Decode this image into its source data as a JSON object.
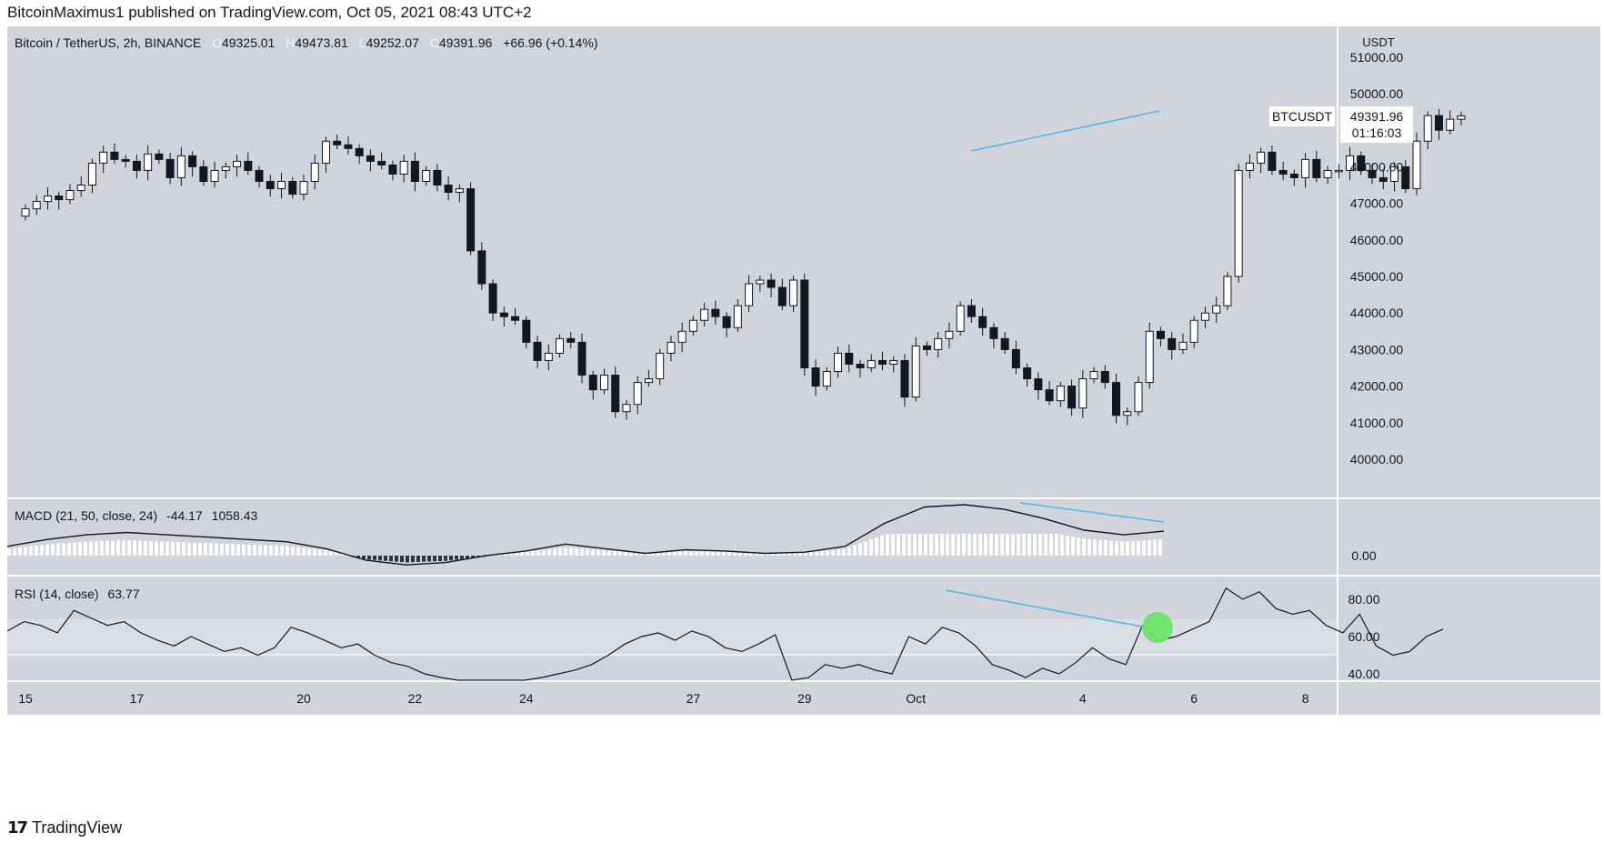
{
  "header": {
    "text": "BitcoinMaximus1 published on TradingView.com, Oct 05, 2021 08:43 UTC+2"
  },
  "legend": {
    "symbol": "Bitcoin / TetherUS, 2h, BINANCE",
    "o_label": "O",
    "o": "49325.01",
    "h_label": "H",
    "h": "49473.81",
    "l_label": "L",
    "l": "49252.07",
    "c_label": "C",
    "c": "49391.96",
    "change": "+66.96 (+0.14%)"
  },
  "price_badge": {
    "ticker": "BTCUSDT",
    "price": "49391.96",
    "countdown": "01:16:03"
  },
  "colors": {
    "pane_bg": "#d1d4dc",
    "axis_bg": "#ffffff",
    "trendline": "#4fb6e8",
    "highlight": "#6ee36a",
    "text": "#131722"
  },
  "footer": {
    "brand": "TradingView",
    "logo_icon": "tradingview-logo-icon"
  },
  "chart_data": [
    {
      "type": "candlestick",
      "title": "Bitcoin / TetherUS, 2h, BINANCE",
      "y_unit": "USDT",
      "ylim": [
        39000,
        51500
      ],
      "y_ticks": [
        "51000.00",
        "50000.00",
        "49000.00",
        "48000.00",
        "47000.00",
        "46000.00",
        "45000.00",
        "44000.00",
        "43000.00",
        "42000.00",
        "41000.00",
        "40000.00"
      ],
      "x_ticks": [
        "15",
        "17",
        "20",
        "22",
        "24",
        "27",
        "29",
        "Oct",
        "4",
        "6",
        "8"
      ],
      "x_tick_days": [
        0,
        2,
        5,
        7,
        9,
        12,
        14,
        16,
        19,
        21,
        23
      ],
      "last_price": 49391.96,
      "trendline": {
        "from": [
          "Oct 1, 12:00",
          48450
        ],
        "to": [
          "Oct 5, 04:00",
          49700
        ]
      },
      "candles_close": [
        [
          0.0,
          46850
        ],
        [
          0.2,
          47050
        ],
        [
          0.4,
          47200
        ],
        [
          0.6,
          47100
        ],
        [
          0.8,
          47350
        ],
        [
          1.0,
          47500
        ],
        [
          1.2,
          48100
        ],
        [
          1.4,
          48400
        ],
        [
          1.6,
          48200
        ],
        [
          1.8,
          48150
        ],
        [
          2.0,
          47900
        ],
        [
          2.2,
          48350
        ],
        [
          2.4,
          48200
        ],
        [
          2.6,
          47700
        ],
        [
          2.8,
          48300
        ],
        [
          3.0,
          48000
        ],
        [
          3.2,
          47600
        ],
        [
          3.4,
          47900
        ],
        [
          3.6,
          48000
        ],
        [
          3.8,
          48150
        ],
        [
          4.0,
          47900
        ],
        [
          4.2,
          47600
        ],
        [
          4.4,
          47400
        ],
        [
          4.6,
          47600
        ],
        [
          4.8,
          47250
        ],
        [
          5.0,
          47600
        ],
        [
          5.2,
          48100
        ],
        [
          5.4,
          48700
        ],
        [
          5.6,
          48600
        ],
        [
          5.8,
          48500
        ],
        [
          6.0,
          48300
        ],
        [
          6.2,
          48150
        ],
        [
          6.4,
          48050
        ],
        [
          6.6,
          47800
        ],
        [
          6.8,
          48150
        ],
        [
          7.0,
          47600
        ],
        [
          7.2,
          47900
        ],
        [
          7.4,
          47500
        ],
        [
          7.6,
          47300
        ],
        [
          7.8,
          47400
        ],
        [
          8.0,
          45700
        ],
        [
          8.2,
          44800
        ],
        [
          8.4,
          44000
        ],
        [
          8.6,
          43900
        ],
        [
          8.8,
          43800
        ],
        [
          9.0,
          43200
        ],
        [
          9.2,
          42700
        ],
        [
          9.4,
          42900
        ],
        [
          9.6,
          43300
        ],
        [
          9.8,
          43200
        ],
        [
          10.0,
          42300
        ],
        [
          10.2,
          41900
        ],
        [
          10.4,
          42300
        ],
        [
          10.6,
          41300
        ],
        [
          10.8,
          41500
        ],
        [
          11.0,
          42100
        ],
        [
          11.2,
          42200
        ],
        [
          11.4,
          42900
        ],
        [
          11.6,
          43200
        ],
        [
          11.8,
          43500
        ],
        [
          12.0,
          43800
        ],
        [
          12.2,
          44100
        ],
        [
          12.4,
          43900
        ],
        [
          12.6,
          43600
        ],
        [
          12.8,
          44200
        ],
        [
          13.0,
          44800
        ],
        [
          13.2,
          44900
        ],
        [
          13.4,
          44700
        ],
        [
          13.6,
          44200
        ],
        [
          13.8,
          44900
        ],
        [
          14.0,
          42500
        ],
        [
          14.2,
          42000
        ],
        [
          14.4,
          42400
        ],
        [
          14.6,
          42900
        ],
        [
          14.8,
          42600
        ],
        [
          15.0,
          42500
        ],
        [
          15.2,
          42700
        ],
        [
          15.4,
          42600
        ],
        [
          15.6,
          42700
        ],
        [
          15.8,
          41700
        ],
        [
          16.0,
          43100
        ],
        [
          16.2,
          43000
        ],
        [
          16.4,
          43300
        ],
        [
          16.6,
          43500
        ],
        [
          16.8,
          44200
        ],
        [
          17.0,
          43900
        ],
        [
          17.2,
          43600
        ],
        [
          17.4,
          43300
        ],
        [
          17.6,
          43000
        ],
        [
          17.8,
          42500
        ],
        [
          18.0,
          42200
        ],
        [
          18.2,
          41900
        ],
        [
          18.4,
          41600
        ],
        [
          18.6,
          42000
        ],
        [
          18.8,
          41400
        ],
        [
          19.0,
          42200
        ],
        [
          19.2,
          42400
        ],
        [
          19.4,
          42100
        ],
        [
          19.6,
          41200
        ],
        [
          19.8,
          41300
        ],
        [
          20.0,
          42100
        ],
        [
          20.2,
          43500
        ],
        [
          20.4,
          43300
        ],
        [
          20.6,
          43000
        ],
        [
          20.8,
          43200
        ],
        [
          21.0,
          43800
        ],
        [
          21.2,
          44000
        ],
        [
          21.4,
          44200
        ],
        [
          21.6,
          45000
        ],
        [
          21.8,
          47900
        ],
        [
          22.0,
          48100
        ],
        [
          22.2,
          48400
        ],
        [
          22.4,
          47900
        ],
        [
          22.6,
          47800
        ],
        [
          22.8,
          47700
        ],
        [
          23.0,
          48200
        ],
        [
          23.2,
          47700
        ],
        [
          23.4,
          47900
        ],
        [
          23.6,
          47900
        ],
        [
          23.8,
          48300
        ],
        [
          24.0,
          47900
        ],
        [
          24.2,
          47700
        ],
        [
          24.4,
          47600
        ],
        [
          24.6,
          48000
        ],
        [
          24.8,
          47400
        ],
        [
          25.0,
          48700
        ],
        [
          25.2,
          49400
        ],
        [
          25.4,
          49000
        ],
        [
          25.6,
          49300
        ],
        [
          25.8,
          49392
        ]
      ]
    },
    {
      "type": "line",
      "title": "MACD (21, 50, close, 24)",
      "values_text": [
        "-44.17",
        "1058.43"
      ],
      "y_ticks": [
        "0.00"
      ],
      "series": [
        {
          "name": "",
          "values": [
            [
              0,
              400
            ],
            [
              1,
              700
            ],
            [
              2,
              900
            ],
            [
              3,
              1000
            ],
            [
              4,
              900
            ],
            [
              5,
              800
            ],
            [
              6,
              700
            ],
            [
              7,
              600
            ],
            [
              8,
              300
            ],
            [
              9,
              -200
            ],
            [
              10,
              -400
            ],
            [
              11,
              -300
            ],
            [
              12,
              0
            ],
            [
              13,
              200
            ],
            [
              14,
              500
            ],
            [
              15,
              300
            ],
            [
              16,
              100
            ],
            [
              17,
              250
            ],
            [
              18,
              200
            ],
            [
              19,
              100
            ],
            [
              20,
              150
            ],
            [
              21,
              400
            ],
            [
              22,
              1400
            ],
            [
              23,
              2100
            ],
            [
              24,
              2200
            ],
            [
              25,
              2000
            ],
            [
              26,
              1600
            ],
            [
              27,
              1100
            ],
            [
              28,
              900
            ],
            [
              29,
              1058
            ]
          ]
        }
      ]
    },
    {
      "type": "line",
      "title": "RSI (14, close)",
      "values_text": [
        "63.77"
      ],
      "y_ticks": [
        "80.00",
        "60.00",
        "40.00"
      ],
      "band": [
        50,
        70
      ],
      "series": [
        {
          "name": "",
          "values": [
            [
              0.0,
              63
            ],
            [
              0.3,
              68
            ],
            [
              0.6,
              66
            ],
            [
              0.9,
              62
            ],
            [
              1.2,
              74
            ],
            [
              1.5,
              70
            ],
            [
              1.8,
              66
            ],
            [
              2.1,
              68
            ],
            [
              2.4,
              62
            ],
            [
              2.7,
              58
            ],
            [
              3.0,
              55
            ],
            [
              3.3,
              60
            ],
            [
              3.6,
              56
            ],
            [
              3.9,
              52
            ],
            [
              4.2,
              54
            ],
            [
              4.5,
              50
            ],
            [
              4.8,
              54
            ],
            [
              5.1,
              65
            ],
            [
              5.4,
              62
            ],
            [
              5.7,
              58
            ],
            [
              6.0,
              54
            ],
            [
              6.3,
              56
            ],
            [
              6.6,
              50
            ],
            [
              6.9,
              46
            ],
            [
              7.2,
              44
            ],
            [
              7.5,
              40
            ],
            [
              7.8,
              38
            ],
            [
              8.1,
              34
            ],
            [
              8.4,
              30
            ],
            [
              8.7,
              26
            ],
            [
              9.0,
              32
            ],
            [
              9.3,
              35
            ],
            [
              9.6,
              38
            ],
            [
              9.9,
              40
            ],
            [
              10.2,
              42
            ],
            [
              10.5,
              45
            ],
            [
              10.8,
              50
            ],
            [
              11.1,
              56
            ],
            [
              11.4,
              60
            ],
            [
              11.7,
              62
            ],
            [
              12.0,
              58
            ],
            [
              12.3,
              63
            ],
            [
              12.6,
              60
            ],
            [
              12.9,
              54
            ],
            [
              13.2,
              52
            ],
            [
              13.5,
              56
            ],
            [
              13.8,
              61
            ],
            [
              14.1,
              32
            ],
            [
              14.4,
              38
            ],
            [
              14.7,
              45
            ],
            [
              15.0,
              43
            ],
            [
              15.3,
              45
            ],
            [
              15.6,
              42
            ],
            [
              15.9,
              40
            ],
            [
              16.2,
              60
            ],
            [
              16.5,
              56
            ],
            [
              16.8,
              65
            ],
            [
              17.1,
              62
            ],
            [
              17.4,
              55
            ],
            [
              17.7,
              45
            ],
            [
              18.0,
              42
            ],
            [
              18.3,
              38
            ],
            [
              18.6,
              43
            ],
            [
              18.9,
              40
            ],
            [
              19.2,
              46
            ],
            [
              19.5,
              54
            ],
            [
              19.8,
              48
            ],
            [
              20.1,
              45
            ],
            [
              20.4,
              66
            ],
            [
              20.7,
              58
            ],
            [
              21.0,
              60
            ],
            [
              21.3,
              64
            ],
            [
              21.6,
              68
            ],
            [
              21.9,
              86
            ],
            [
              22.2,
              80
            ],
            [
              22.5,
              84
            ],
            [
              22.8,
              75
            ],
            [
              23.1,
              72
            ],
            [
              23.4,
              74
            ],
            [
              23.7,
              66
            ],
            [
              24.0,
              62
            ],
            [
              24.3,
              72
            ],
            [
              24.6,
              55
            ],
            [
              24.9,
              50
            ],
            [
              25.2,
              52
            ],
            [
              25.5,
              60
            ],
            [
              25.8,
              64
            ]
          ]
        }
      ]
    }
  ]
}
